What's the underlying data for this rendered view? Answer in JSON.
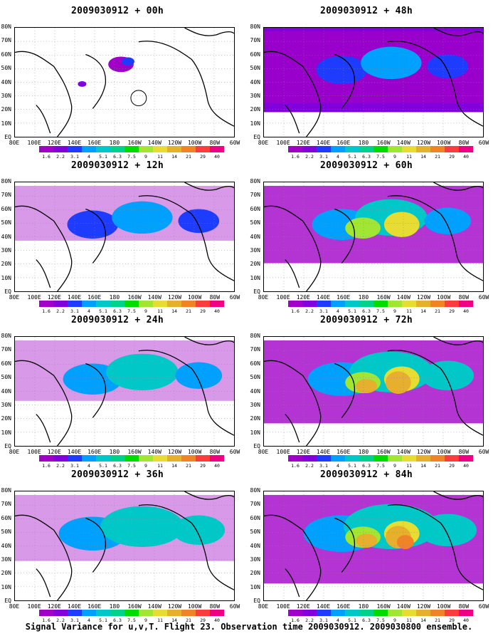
{
  "caption": "Signal Variance for u,v,T. Flight 23. Observation time 2009030912. 2009030800 ensemble.",
  "panels": [
    {
      "title": "2009030912 + 00h",
      "intensity": 0
    },
    {
      "title": "2009030912 + 12h",
      "intensity": 1
    },
    {
      "title": "2009030912 + 24h",
      "intensity": 2
    },
    {
      "title": "2009030912 + 36h",
      "intensity": 3
    },
    {
      "title": "2009030912 + 48h",
      "intensity": 4
    },
    {
      "title": "2009030912 + 60h",
      "intensity": 5
    },
    {
      "title": "2009030912 + 72h",
      "intensity": 6
    },
    {
      "title": "2009030912 + 84h",
      "intensity": 7
    }
  ],
  "lat_labels": [
    "80N",
    "70N",
    "60N",
    "50N",
    "40N",
    "30N",
    "20N",
    "10N",
    "EQ"
  ],
  "lon_labels": [
    "80E",
    "100E",
    "120E",
    "140E",
    "160E",
    "180",
    "160W",
    "140W",
    "120W",
    "100W",
    "80W",
    "60W"
  ],
  "colorbar": {
    "levels": [
      "1.6",
      "2.2",
      "3.1",
      "4",
      "5.1",
      "6.3",
      "7.5",
      "9",
      "11",
      "14",
      "21",
      "29",
      "40"
    ],
    "colors": [
      "#a000c8",
      "#8200dc",
      "#1e3cff",
      "#00a0ff",
      "#00c8c8",
      "#00d28c",
      "#00dc00",
      "#a0e632",
      "#e6dc32",
      "#e6af2d",
      "#f08228",
      "#fa3c3c",
      "#f00082"
    ]
  }
}
